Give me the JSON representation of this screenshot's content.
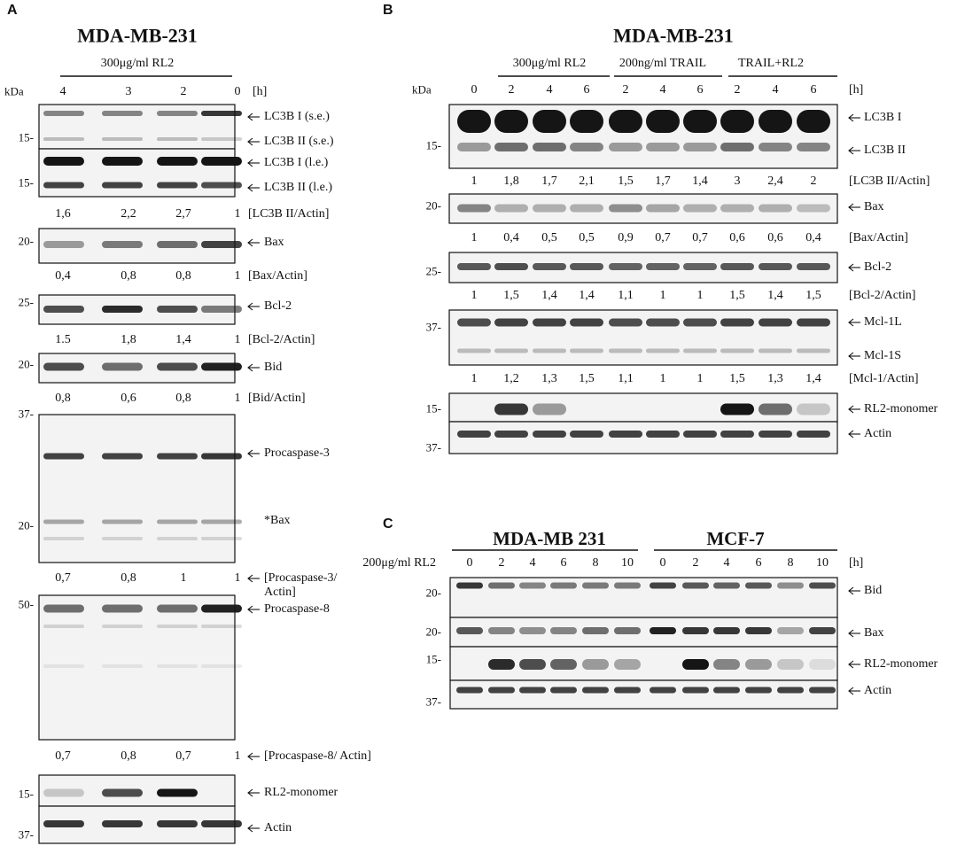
{
  "panels": [
    {
      "letter": "A",
      "title": "MDA-MB-231",
      "groups": [
        {
          "label": "300μg/ml RL2"
        }
      ],
      "kda": "kDa",
      "unit": "[h]",
      "lanes": [
        "4",
        "3",
        "2",
        "0"
      ],
      "blots": [
        {
          "markers": [
            "15-"
          ],
          "labels": [
            "LC3B I (s.e.)",
            "LC3B II (s.e.)"
          ]
        },
        {
          "markers": [
            "15-"
          ],
          "labels": [
            "LC3B I (l.e.)",
            "LC3B II (l.e.)"
          ]
        },
        {
          "markers": [
            "20-"
          ],
          "labels": [
            "Bax"
          ]
        },
        {
          "markers": [
            "25-"
          ],
          "labels": [
            "Bcl-2"
          ]
        },
        {
          "markers": [
            "20-"
          ],
          "labels": [
            "Bid"
          ]
        },
        {
          "markers": [
            "37-",
            "20-"
          ],
          "labels": [
            "Procaspase-3",
            "*Bax"
          ]
        },
        {
          "markers": [
            "50-"
          ],
          "labels": [
            "Procaspase-8"
          ]
        },
        {
          "markers": [
            "15-"
          ],
          "labels": [
            "RL2-monomer"
          ]
        },
        {
          "markers": [
            "37-"
          ],
          "labels": [
            "Actin"
          ]
        }
      ],
      "ratios": [
        {
          "values": [
            "1,6",
            "2,2",
            "2,7",
            "1"
          ],
          "label": "[LC3B II/Actin]"
        },
        {
          "values": [
            "0,4",
            "0,8",
            "0,8",
            "1"
          ],
          "label": "[Bax/Actin]"
        },
        {
          "values": [
            "1.5",
            "1,8",
            "1,4",
            "1"
          ],
          "label": "[Bcl-2/Actin]"
        },
        {
          "values": [
            "0,8",
            "0,6",
            "0,8",
            "1"
          ],
          "label": "[Bid/Actin]"
        },
        {
          "values": [
            "0,7",
            "0,8",
            "1",
            "1"
          ],
          "label": "[Procaspase-3/ Actin]"
        },
        {
          "values": [
            "0,7",
            "0,8",
            "0,7",
            "1"
          ],
          "label": "[Procaspase-8/ Actin]"
        }
      ]
    },
    {
      "letter": "B",
      "title": "MDA-MB-231",
      "groups": [
        {
          "label": "300μg/ml RL2"
        },
        {
          "label": "200ng/ml TRAIL"
        },
        {
          "label": "TRAIL+RL2"
        }
      ],
      "kda": "kDa",
      "unit": "[h]",
      "lanes": [
        "0",
        "2",
        "4",
        "6",
        "2",
        "4",
        "6",
        "2",
        "4",
        "6"
      ],
      "blots": [
        {
          "markers": [
            "15-"
          ],
          "labels": [
            "LC3B I",
            "LC3B II"
          ]
        },
        {
          "markers": [
            "20-"
          ],
          "labels": [
            "Bax"
          ]
        },
        {
          "markers": [
            "25-"
          ],
          "labels": [
            "Bcl-2"
          ]
        },
        {
          "markers": [
            "37-"
          ],
          "labels": [
            "Mcl-1L",
            "Mcl-1S"
          ]
        },
        {
          "markers": [
            "15-"
          ],
          "labels": [
            "RL2-monomer"
          ]
        },
        {
          "markers": [
            "37-"
          ],
          "labels": [
            "Actin"
          ]
        }
      ],
      "ratios": [
        {
          "values": [
            "1",
            "1,8",
            "1,7",
            "2,1",
            "1,5",
            "1,7",
            "1,4",
            "3",
            "2,4",
            "2"
          ],
          "label": "[LC3B II/Actin]"
        },
        {
          "values": [
            "1",
            "0,4",
            "0,5",
            "0,5",
            "0,9",
            "0,7",
            "0,7",
            "0,6",
            "0,6",
            "0,4"
          ],
          "label": "[Bax/Actin]"
        },
        {
          "values": [
            "1",
            "1,5",
            "1,4",
            "1,4",
            "1,1",
            "1",
            "1",
            "1,5",
            "1,4",
            "1,5"
          ],
          "label": "[Bcl-2/Actin]"
        },
        {
          "values": [
            "1",
            "1,2",
            "1,3",
            "1,5",
            "1,1",
            "1",
            "1",
            "1,5",
            "1,3",
            "1,4"
          ],
          "label": "[Mcl-1/Actin]"
        }
      ]
    },
    {
      "letter": "C",
      "groups": [
        {
          "label": "MDA-MB 231"
        },
        {
          "label": "MCF-7"
        }
      ],
      "row_label": "200μg/ml RL2",
      "unit": "[h]",
      "lanes": [
        "0",
        "2",
        "4",
        "6",
        "8",
        "10",
        "0",
        "2",
        "4",
        "6",
        "8",
        "10"
      ],
      "blots": [
        {
          "markers": [
            "20-"
          ],
          "labels": [
            "Bid"
          ]
        },
        {
          "markers": [
            "20-"
          ],
          "labels": [
            "Bax"
          ]
        },
        {
          "markers": [
            "15-"
          ],
          "labels": [
            "RL2-monomer"
          ]
        },
        {
          "markers": [
            "37-"
          ],
          "labels": [
            "Actin"
          ]
        }
      ],
      "ratios": []
    }
  ]
}
